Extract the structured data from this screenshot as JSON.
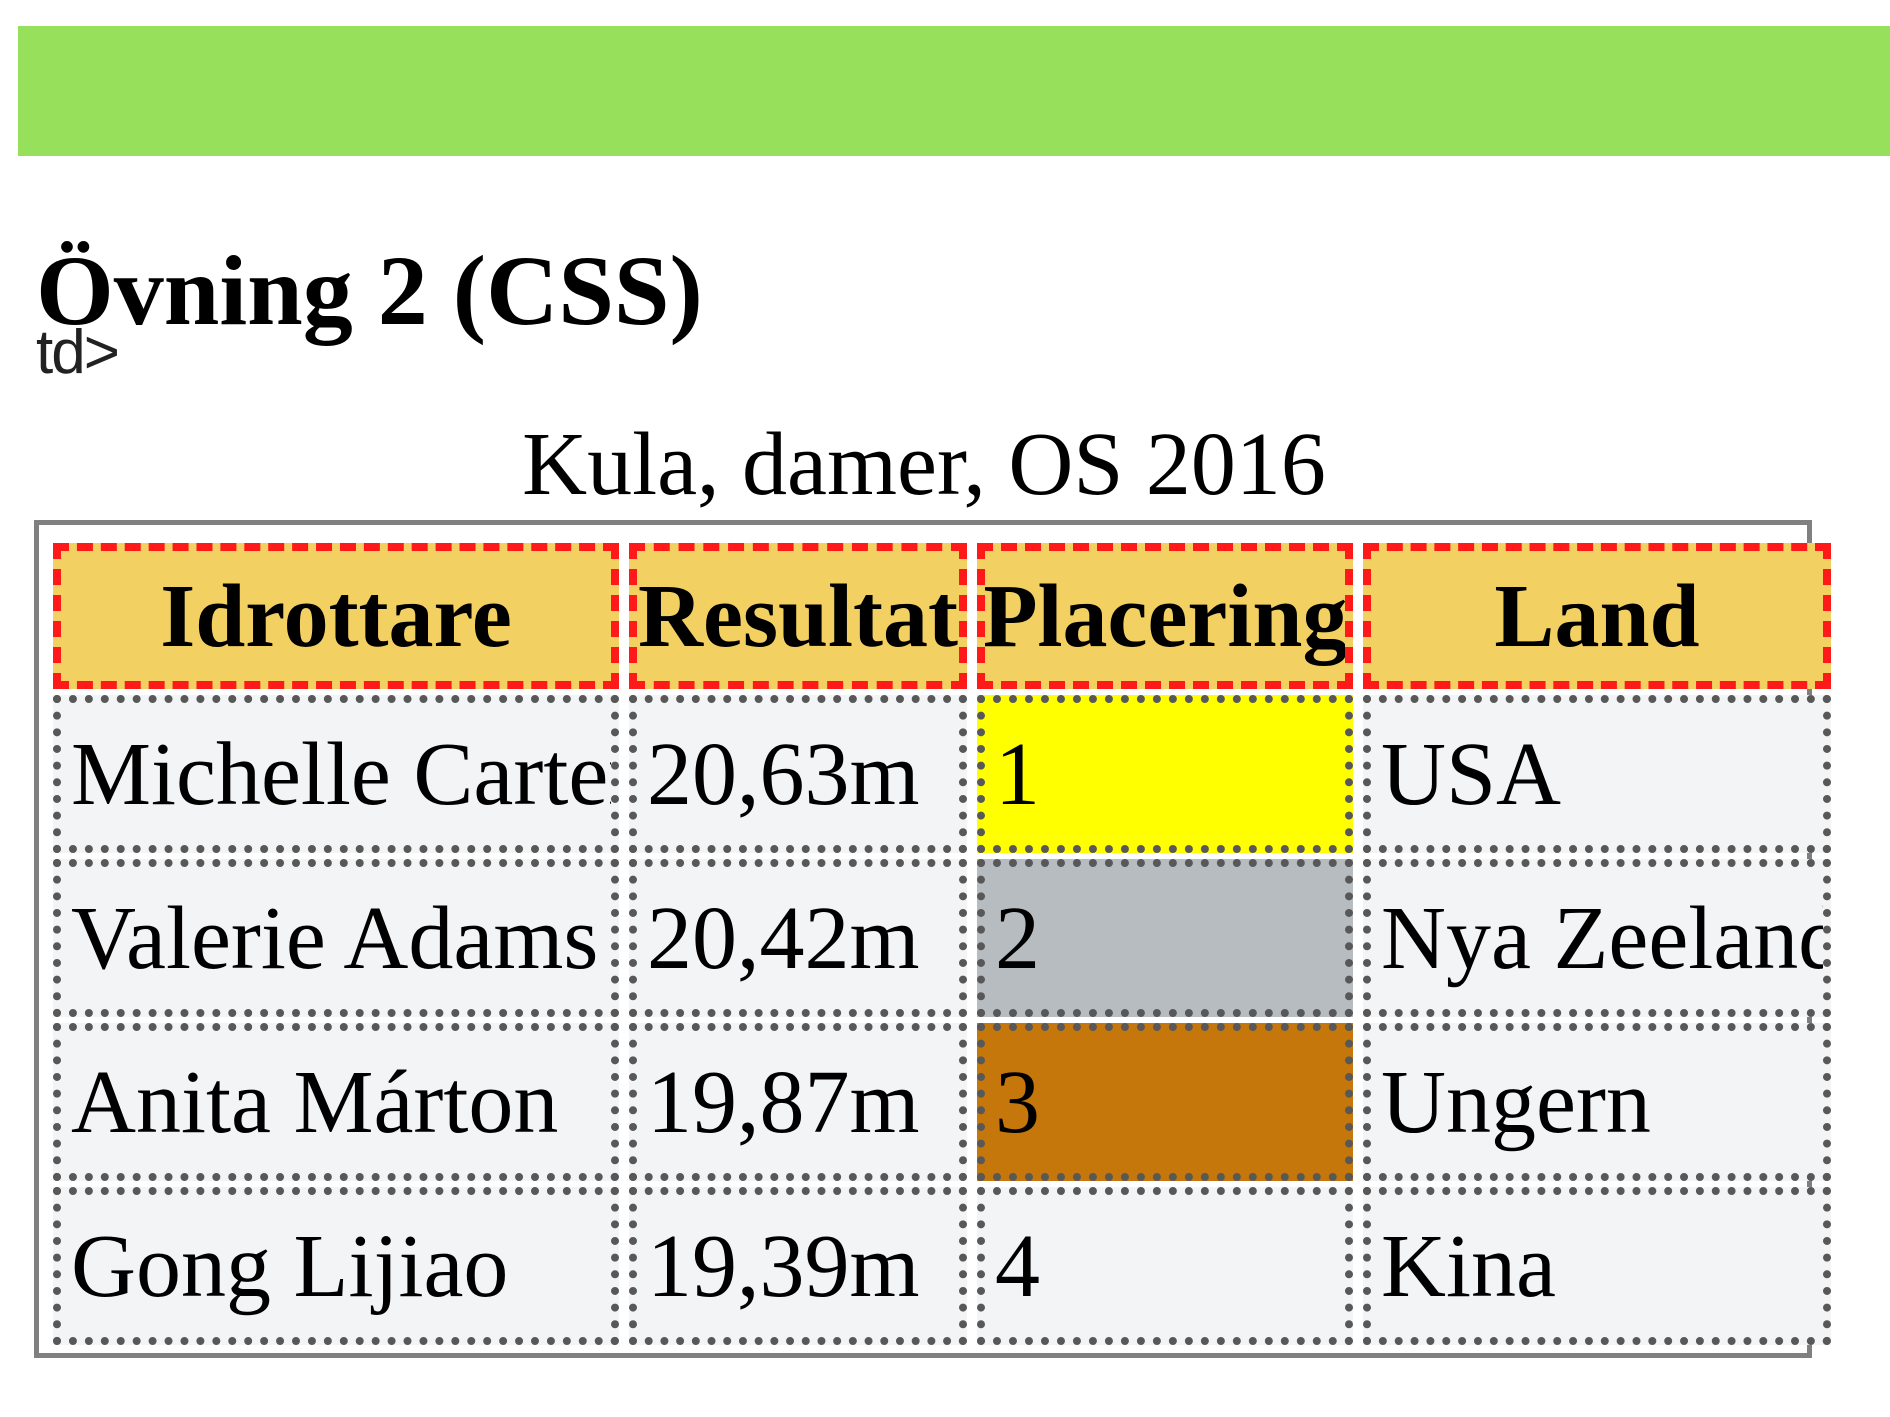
{
  "page": {
    "title": "Övning 2 (CSS)",
    "stray_text": "td>"
  },
  "table": {
    "caption": "Kula, damer, OS 2016",
    "headers": [
      "Idrottare",
      "Resultat",
      "Placering",
      "Land"
    ],
    "rows": [
      {
        "athlete": "Michelle Carter",
        "result": "20,63m",
        "placement": "1",
        "country": "USA"
      },
      {
        "athlete": "Valerie Adams",
        "result": "20,42m",
        "placement": "2",
        "country": "Nya Zeeland"
      },
      {
        "athlete": "Anita Márton",
        "result": "19,87m",
        "placement": "3",
        "country": "Ungern"
      },
      {
        "athlete": "Gong Lijiao",
        "result": "19,39m",
        "placement": "4",
        "country": "Kina"
      }
    ]
  },
  "colors": {
    "header_bar": "#97e05c",
    "header_cell_bg": "#f3d062",
    "header_cell_border": "#ff1a1a",
    "cell_bg": "#f3f4f6",
    "gold": "#ffff00",
    "silver": "#b7bcc1",
    "bronze": "#c5770b"
  }
}
